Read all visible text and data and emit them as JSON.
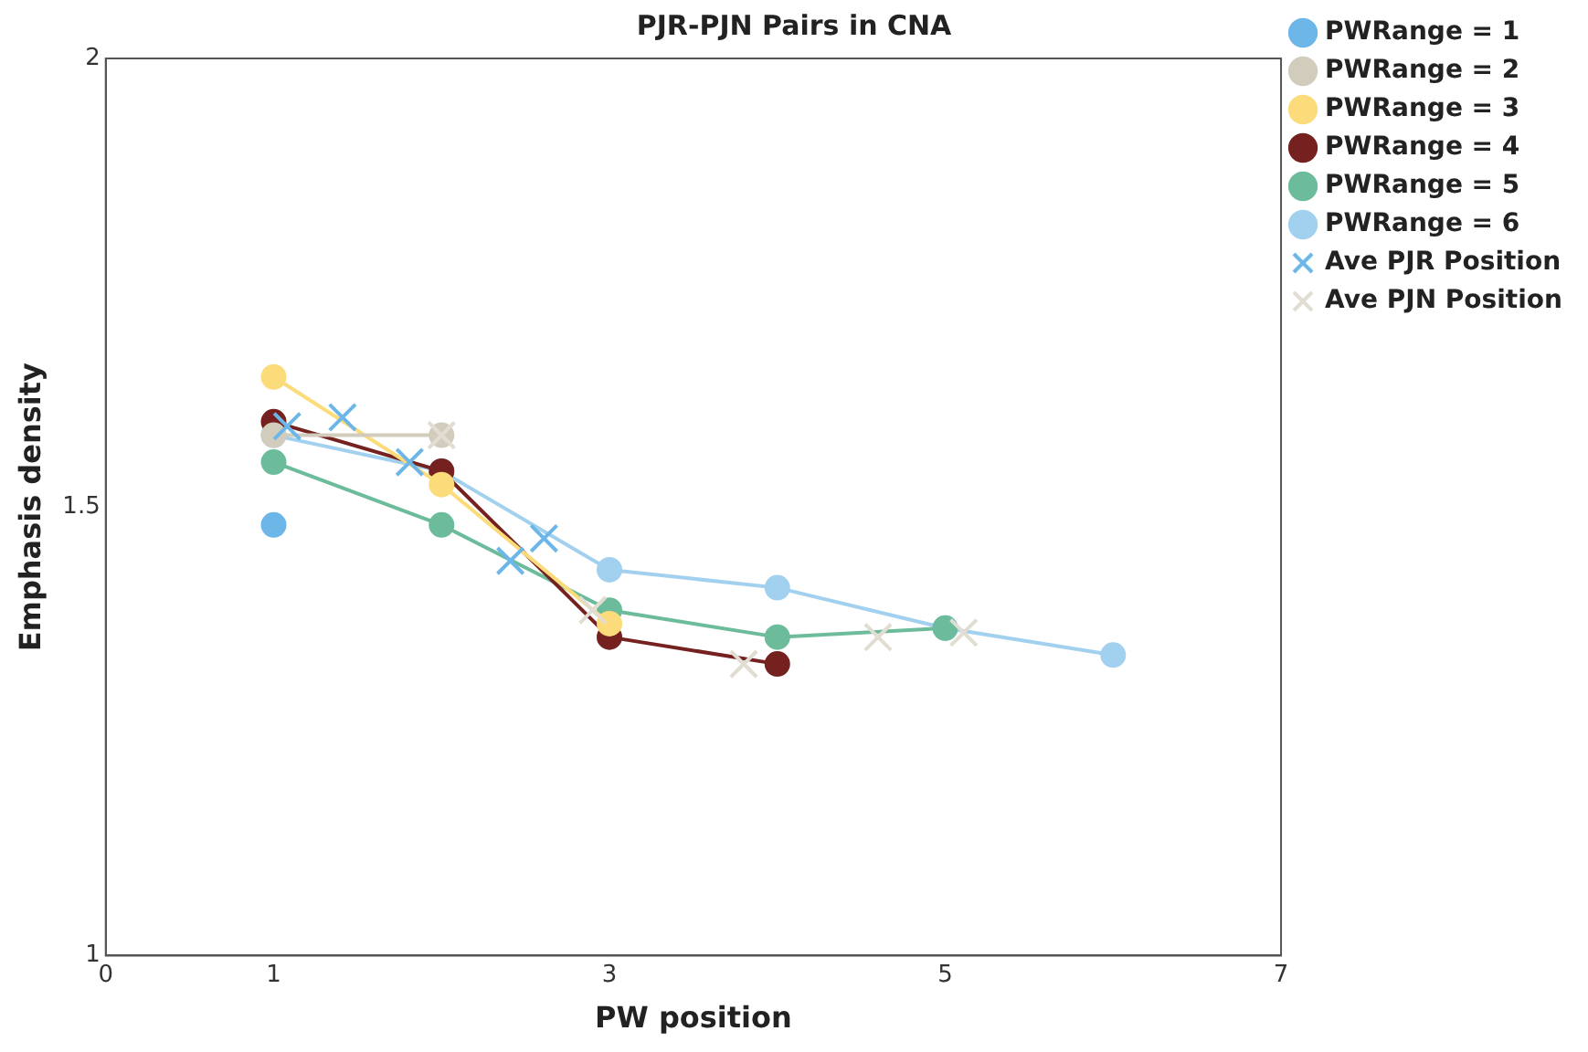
{
  "chart_data": {
    "type": "line",
    "title": "PJR-PJN Pairs in CNA",
    "xlabel": "PW position",
    "ylabel": "Emphasis density",
    "xlim": [
      0,
      7
    ],
    "xticks": [
      0,
      1,
      3,
      5,
      7
    ],
    "ylim": [
      1,
      2
    ],
    "yticks": [
      1,
      1.5,
      2
    ],
    "grid": false,
    "legend": "top right",
    "marker": "circle",
    "series": [
      {
        "name": "PWRange = 1",
        "color": "#6cb6e8",
        "x": [
          1
        ],
        "values": [
          1.48
        ]
      },
      {
        "name": "PWRange = 2",
        "color": "#d2ccbc",
        "x": [
          1,
          2
        ],
        "values": [
          1.58,
          1.58
        ]
      },
      {
        "name": "PWRange = 3",
        "color": "#fcdc7a",
        "x": [
          1,
          2,
          3
        ],
        "values": [
          1.645,
          1.525,
          1.37
        ]
      },
      {
        "name": "PWRange = 4",
        "color": "#74211f",
        "x": [
          1,
          2,
          3,
          4
        ],
        "values": [
          1.595,
          1.54,
          1.355,
          1.325
        ]
      },
      {
        "name": "PWRange = 5",
        "color": "#6cbc9c",
        "x": [
          1,
          2,
          3,
          4,
          5
        ],
        "values": [
          1.55,
          1.48,
          1.385,
          1.355,
          1.365
        ]
      },
      {
        "name": "PWRange = 6",
        "color": "#a2d0ef",
        "x": [
          1,
          2,
          3,
          4,
          5,
          6
        ],
        "values": [
          1.58,
          1.54,
          1.43,
          1.41,
          1.365,
          1.335
        ]
      },
      {
        "name": "Ave PJR Position",
        "type": "scatter",
        "marker": "cross",
        "color": "#6cb6e8",
        "x": [
          1.08,
          1.41,
          1.81,
          2.41,
          2.61
        ],
        "values": [
          1.59,
          1.6,
          1.55,
          1.44,
          1.465
        ]
      },
      {
        "name": "Ave PJN Position",
        "type": "scatter",
        "marker": "cross",
        "color": "#e2ddd2",
        "x": [
          2.0,
          2.9,
          3.8,
          4.6,
          5.11
        ],
        "values": [
          1.58,
          1.385,
          1.325,
          1.355,
          1.36
        ]
      }
    ]
  }
}
